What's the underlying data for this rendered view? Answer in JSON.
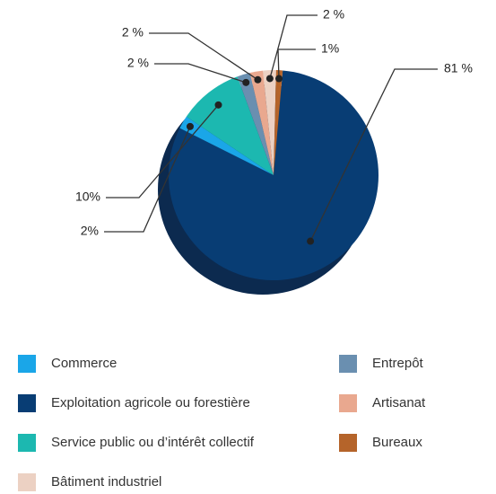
{
  "chart_data": {
    "type": "pie",
    "categories": [
      "Commerce",
      "Exploitation agricole ou forestière",
      "Service public ou d’intérêt collectif",
      "Bâtiment industriel",
      "Entrepôt",
      "Artisanat",
      "Bureaux"
    ],
    "values": [
      2,
      81,
      10,
      2,
      2,
      2,
      1
    ],
    "value_labels": [
      "2%",
      "81 %",
      "10%",
      "2 %",
      "2 %",
      "2 %",
      "1%"
    ],
    "colors": [
      "#1aa6e8",
      "#083d74",
      "#1cb8b0",
      "#ecd1c3",
      "#6a8fb0",
      "#e9a88f",
      "#b5642a"
    ]
  }
}
